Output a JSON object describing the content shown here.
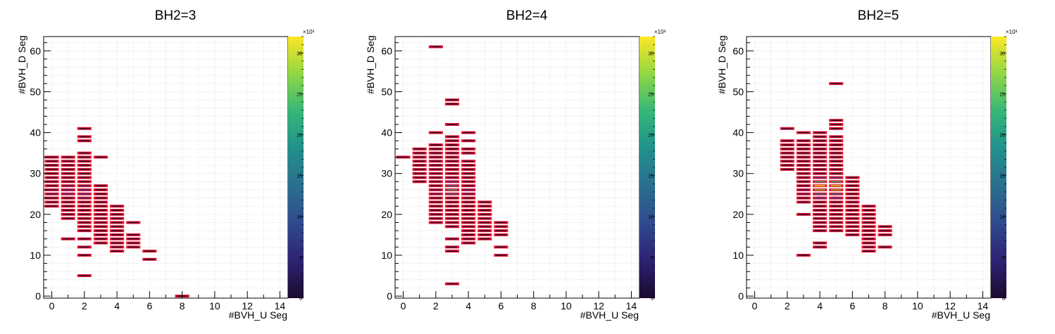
{
  "colors": {
    "cell_border": "#e8112d",
    "cell_fill": "#2a0e2e",
    "grid": "#c8c8c8",
    "axis": "#000000",
    "colorbar": [
      "#1b0a2e",
      "#2e2273",
      "#2f4a8f",
      "#2a6f8e",
      "#21918c",
      "#35b779",
      "#90d743",
      "#fde725"
    ]
  },
  "chart_data": [
    {
      "type": "heatmap",
      "title": "BH2=3",
      "xlabel": "#BVH_U Seg",
      "ylabel": "#BVH_D Seg",
      "xlim": [
        -0.5,
        14.5
      ],
      "ylim": [
        -0.5,
        63.5
      ],
      "xticks": [
        0,
        2,
        4,
        6,
        8,
        10,
        12,
        14
      ],
      "yticks": [
        0,
        10,
        20,
        30,
        40,
        50,
        60
      ],
      "colorbar": {
        "min": 0,
        "max": 32,
        "exponent": "×10³",
        "ticks": [
          0,
          5,
          10,
          15,
          20,
          25,
          30
        ]
      },
      "grid": true,
      "columns": [
        {
          "x": 0,
          "ranges": [
            [
              22,
              34
            ]
          ],
          "hot": [
            [
              25,
              1
            ],
            [
              26,
              1
            ]
          ]
        },
        {
          "x": 1,
          "ranges": [
            [
              19,
              34
            ],
            [
              14,
              14
            ]
          ],
          "hot": [
            [
              25,
              2
            ],
            [
              26,
              2
            ],
            [
              27,
              1
            ]
          ]
        },
        {
          "x": 2,
          "ranges": [
            [
              16,
              35
            ],
            [
              14,
              14
            ],
            [
              12,
              12
            ],
            [
              10,
              10
            ],
            [
              5,
              5
            ],
            [
              38,
              39
            ],
            [
              41,
              41
            ]
          ],
          "hot": [
            [
              25,
              2
            ],
            [
              26,
              2
            ],
            [
              27,
              1
            ],
            [
              24,
              1
            ]
          ]
        },
        {
          "x": 3,
          "ranges": [
            [
              13,
              27
            ],
            [
              34,
              34
            ]
          ],
          "hot": []
        },
        {
          "x": 4,
          "ranges": [
            [
              11,
              22
            ]
          ],
          "hot": []
        },
        {
          "x": 5,
          "ranges": [
            [
              12,
              15
            ],
            [
              18,
              18
            ]
          ],
          "hot": []
        },
        {
          "x": 6,
          "ranges": [
            [
              9,
              9
            ],
            [
              11,
              11
            ]
          ],
          "hot": []
        },
        {
          "x": 8,
          "ranges": [
            [
              0,
              0
            ]
          ],
          "hot": []
        }
      ]
    },
    {
      "type": "heatmap",
      "title": "BH2=4",
      "xlabel": "#BVH_U Seg",
      "ylabel": "#BVH_D Seg",
      "xlim": [
        -0.5,
        14.5
      ],
      "ylim": [
        -0.5,
        63.5
      ],
      "xticks": [
        0,
        2,
        4,
        6,
        8,
        10,
        12,
        14
      ],
      "yticks": [
        0,
        10,
        20,
        30,
        40,
        50,
        60
      ],
      "colorbar": {
        "min": 0,
        "max": 32,
        "exponent": "×10³",
        "ticks": [
          0,
          5,
          10,
          15,
          20,
          25,
          30
        ]
      },
      "grid": true,
      "columns": [
        {
          "x": 0,
          "ranges": [
            [
              34,
              34
            ]
          ],
          "hot": []
        },
        {
          "x": 1,
          "ranges": [
            [
              28,
              36
            ]
          ],
          "hot": []
        },
        {
          "x": 2,
          "ranges": [
            [
              18,
              37
            ],
            [
              40,
              40
            ],
            [
              61,
              61
            ]
          ],
          "hot": [
            [
              25,
              1
            ],
            [
              26,
              1
            ]
          ]
        },
        {
          "x": 3,
          "ranges": [
            [
              17,
              39
            ],
            [
              14,
              14
            ],
            [
              11,
              12
            ],
            [
              3,
              3
            ],
            [
              42,
              42
            ],
            [
              47,
              48
            ]
          ],
          "hot": [
            [
              25,
              3
            ],
            [
              26,
              4
            ],
            [
              27,
              3
            ],
            [
              28,
              2
            ]
          ]
        },
        {
          "x": 4,
          "ranges": [
            [
              13,
              33
            ],
            [
              35,
              36
            ],
            [
              38,
              38
            ],
            [
              40,
              40
            ]
          ],
          "hot": [
            [
              26,
              2
            ],
            [
              25,
              1
            ]
          ]
        },
        {
          "x": 5,
          "ranges": [
            [
              14,
              23
            ]
          ],
          "hot": []
        },
        {
          "x": 6,
          "ranges": [
            [
              15,
              18
            ],
            [
              12,
              12
            ],
            [
              10,
              10
            ]
          ],
          "hot": []
        }
      ]
    },
    {
      "type": "heatmap",
      "title": "BH2=5",
      "xlabel": "#BVH_U Seg",
      "ylabel": "#BVH_D Seg",
      "xlim": [
        -0.5,
        14.5
      ],
      "ylim": [
        -0.5,
        63.5
      ],
      "xticks": [
        0,
        2,
        4,
        6,
        8,
        10,
        12,
        14
      ],
      "yticks": [
        0,
        10,
        20,
        30,
        40,
        50,
        60
      ],
      "colorbar": {
        "min": 0,
        "max": 32,
        "exponent": "×10³",
        "ticks": [
          0,
          5,
          10,
          15,
          20,
          25,
          30
        ]
      },
      "grid": true,
      "columns": [
        {
          "x": 2,
          "ranges": [
            [
              31,
              38
            ],
            [
              41,
              41
            ]
          ],
          "hot": []
        },
        {
          "x": 3,
          "ranges": [
            [
              23,
              38
            ],
            [
              20,
              20
            ],
            [
              10,
              10
            ],
            [
              40,
              40
            ]
          ],
          "hot": [
            [
              25,
              1
            ],
            [
              26,
              1
            ]
          ]
        },
        {
          "x": 4,
          "ranges": [
            [
              16,
              40
            ],
            [
              13,
              13
            ],
            [
              12,
              12
            ]
          ],
          "hot": [
            [
              24,
              2
            ],
            [
              25,
              3
            ],
            [
              26,
              5
            ],
            [
              27,
              7
            ],
            [
              28,
              4
            ],
            [
              29,
              2
            ]
          ]
        },
        {
          "x": 5,
          "ranges": [
            [
              16,
              39
            ],
            [
              41,
              43
            ],
            [
              52,
              52
            ]
          ],
          "hot": [
            [
              24,
              2
            ],
            [
              25,
              3
            ],
            [
              26,
              5
            ],
            [
              27,
              6
            ],
            [
              28,
              4
            ],
            [
              29,
              2
            ]
          ]
        },
        {
          "x": 6,
          "ranges": [
            [
              15,
              29
            ]
          ],
          "hot": []
        },
        {
          "x": 7,
          "ranges": [
            [
              11,
              22
            ]
          ],
          "hot": []
        },
        {
          "x": 8,
          "ranges": [
            [
              15,
              17
            ],
            [
              12,
              12
            ]
          ],
          "hot": []
        }
      ]
    }
  ]
}
